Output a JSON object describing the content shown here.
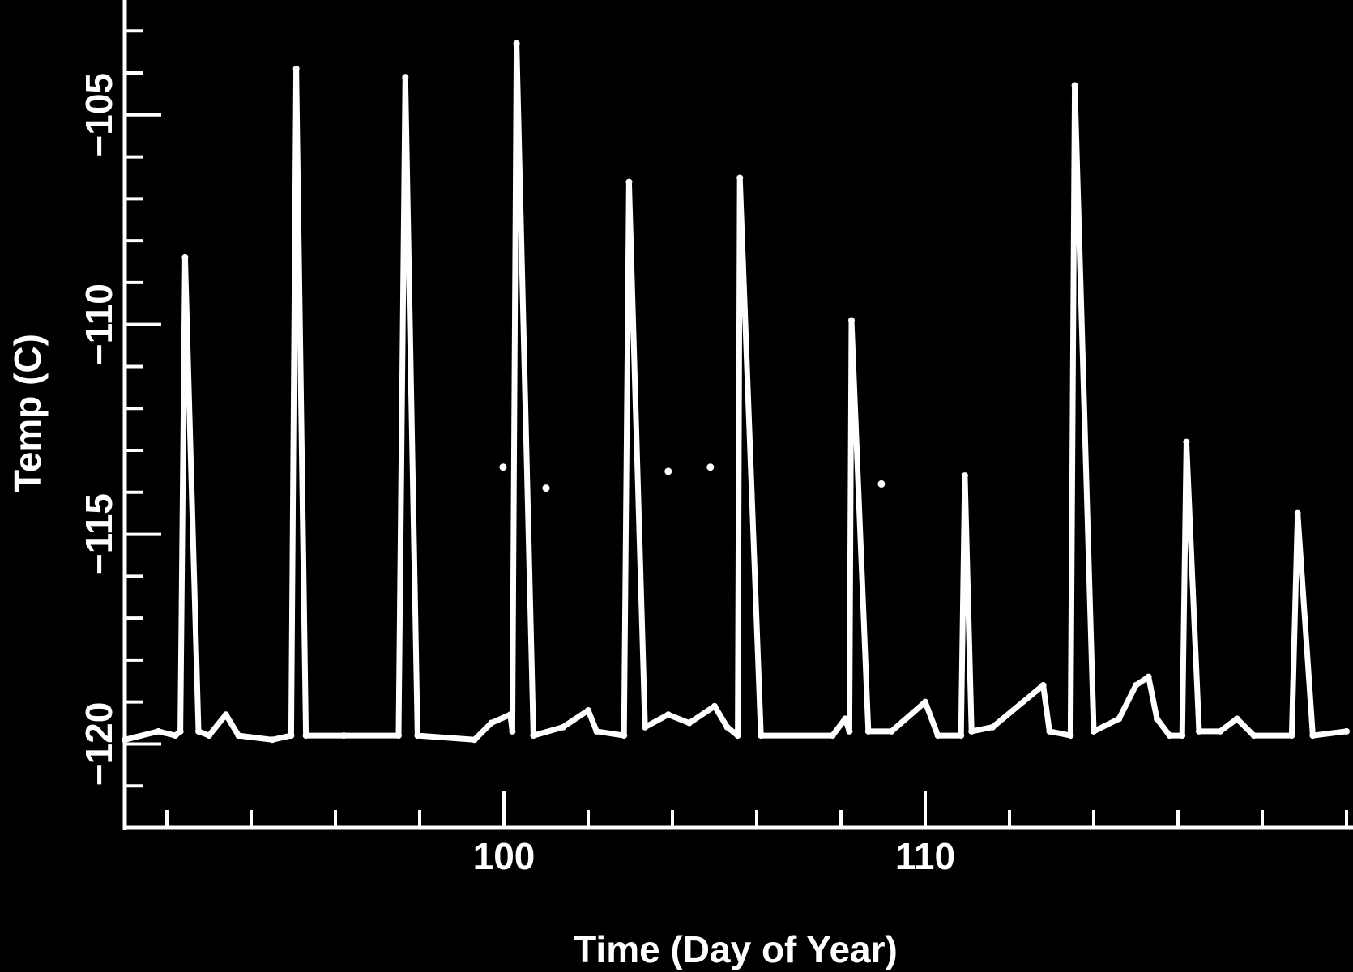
{
  "chart_data": {
    "type": "scatter",
    "title": "",
    "xlabel": "Time (Day of Year)",
    "ylabel": "Temp (C)",
    "xlim": [
      91,
      120
    ],
    "ylim": [
      -122,
      -102.3
    ],
    "x_major_ticks": [
      100,
      110
    ],
    "x_tick_labels": [
      "100",
      "110"
    ],
    "x_minor_step": 2,
    "y_major_ticks": [
      -120,
      -115,
      -110,
      -105
    ],
    "y_tick_labels": [
      "-120",
      "-115",
      "-110",
      "-105"
    ],
    "y_minor_step": 1,
    "grid": false,
    "colors": {
      "background": "#000000",
      "foreground": "#ffffff"
    },
    "series": [
      {
        "points": [
          [
            91,
            -119.9
          ],
          [
            91.8,
            -119.7
          ],
          [
            92.2,
            -119.8
          ],
          [
            92.32,
            -119.7
          ],
          [
            92.43,
            -108.4
          ],
          [
            92.75,
            -119.7
          ],
          [
            93.0,
            -119.8
          ],
          [
            93.4,
            -119.3
          ],
          [
            93.7,
            -119.8
          ],
          [
            94.5,
            -119.9
          ],
          [
            94.95,
            -119.8
          ],
          [
            95.07,
            -103.9
          ],
          [
            95.3,
            -119.8
          ],
          [
            96.2,
            -119.8
          ],
          [
            97.5,
            -119.8
          ],
          [
            97.66,
            -104.1
          ],
          [
            97.95,
            -119.8
          ],
          [
            99.3,
            -119.9
          ],
          [
            99.7,
            -119.5
          ],
          [
            100.15,
            -119.3
          ],
          [
            100.2,
            -119.7
          ],
          [
            100.3,
            -103.3
          ],
          [
            100.7,
            -119.8
          ],
          [
            101.4,
            -119.6
          ],
          [
            102.0,
            -119.2
          ],
          [
            102.2,
            -119.7
          ],
          [
            102.85,
            -119.8
          ],
          [
            102.97,
            -106.6
          ],
          [
            103.35,
            -119.6
          ],
          [
            103.9,
            -119.3
          ],
          [
            104.4,
            -119.5
          ],
          [
            105.0,
            -119.1
          ],
          [
            105.3,
            -119.6
          ],
          [
            105.55,
            -119.8
          ],
          [
            105.6,
            -106.5
          ],
          [
            106.1,
            -119.8
          ],
          [
            107.8,
            -119.8
          ],
          [
            108.1,
            -119.4
          ],
          [
            108.2,
            -119.7
          ],
          [
            108.25,
            -109.9
          ],
          [
            108.65,
            -119.7
          ],
          [
            109.2,
            -119.7
          ],
          [
            110.0,
            -119.0
          ],
          [
            110.3,
            -119.8
          ],
          [
            110.85,
            -119.8
          ],
          [
            110.94,
            -113.6
          ],
          [
            111.1,
            -119.7
          ],
          [
            111.6,
            -119.6
          ],
          [
            112.8,
            -118.6
          ],
          [
            112.95,
            -119.7
          ],
          [
            113.45,
            -119.8
          ],
          [
            113.55,
            -104.3
          ],
          [
            114.0,
            -119.7
          ],
          [
            114.6,
            -119.4
          ],
          [
            115.0,
            -118.6
          ],
          [
            115.3,
            -118.4
          ],
          [
            115.5,
            -119.4
          ],
          [
            115.8,
            -119.8
          ],
          [
            116.1,
            -119.8
          ],
          [
            116.2,
            -112.8
          ],
          [
            116.5,
            -119.7
          ],
          [
            117.0,
            -119.7
          ],
          [
            117.4,
            -119.4
          ],
          [
            117.8,
            -119.8
          ],
          [
            118.7,
            -119.8
          ],
          [
            118.84,
            -114.5
          ],
          [
            119.2,
            -119.8
          ],
          [
            120,
            -119.7
          ]
        ]
      }
    ],
    "outliers": [
      [
        99.98,
        -113.4
      ],
      [
        101.0,
        -113.9
      ],
      [
        103.9,
        -113.5
      ],
      [
        104.9,
        -113.4
      ],
      [
        108.96,
        -113.8
      ]
    ]
  }
}
